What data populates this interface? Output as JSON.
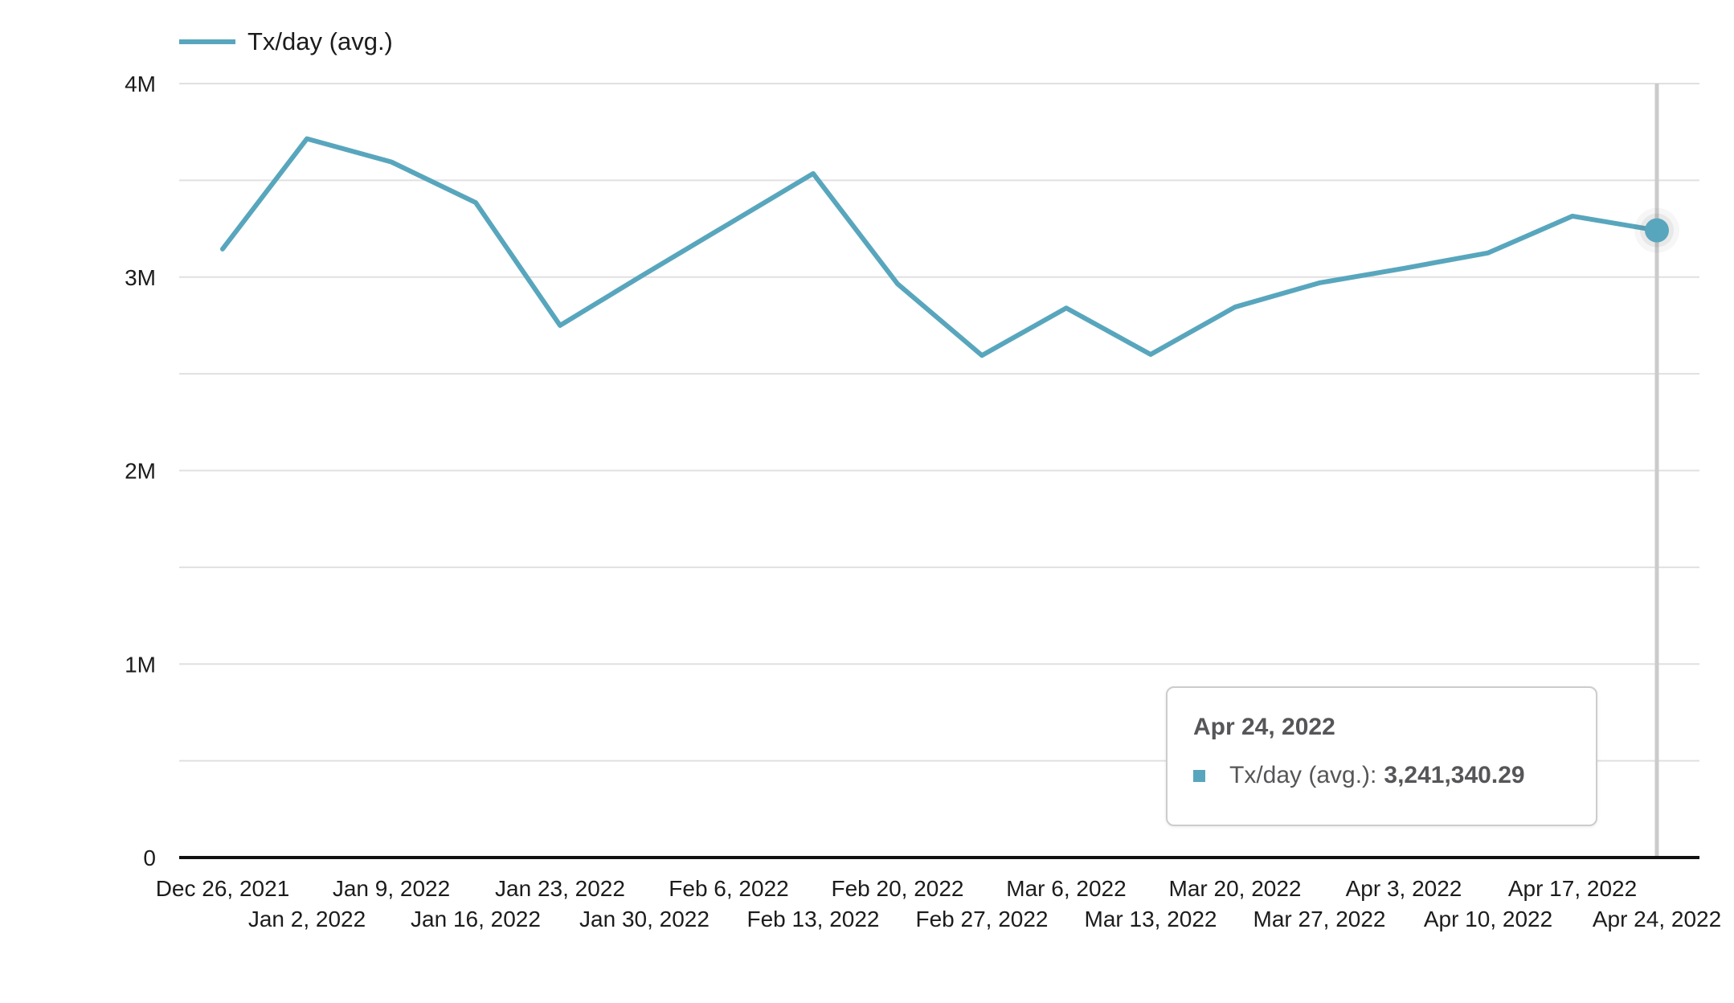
{
  "legend": {
    "label": "Tx/day (avg.)"
  },
  "tooltip": {
    "title": "Apr 24, 2022",
    "series_label": "Tx/day (avg.):",
    "value": "3,241,340.29"
  },
  "colors": {
    "series": "#58a6bd",
    "grid": "#e0e0e0",
    "axis": "#111111",
    "crosshair": "#cbcbcb",
    "axis_text": "#1c1c1c",
    "tooltip_text": "#565659",
    "tooltip_border": "#cccccc"
  },
  "chart_data": {
    "type": "line",
    "title": "",
    "xlabel": "",
    "ylabel": "",
    "legend_position": "top-left",
    "grid": "horizontal",
    "ylim": [
      0,
      4000000
    ],
    "gridline_interval": 500000,
    "y_ticks": [
      {
        "label": "0",
        "value": 0
      },
      {
        "label": "1M",
        "value": 1000000
      },
      {
        "label": "2M",
        "value": 2000000
      },
      {
        "label": "3M",
        "value": 3000000
      },
      {
        "label": "4M",
        "value": 4000000
      }
    ],
    "categories": [
      "Dec 26, 2021",
      "Jan 2, 2022",
      "Jan 9, 2022",
      "Jan 16, 2022",
      "Jan 23, 2022",
      "Jan 30, 2022",
      "Feb 6, 2022",
      "Feb 13, 2022",
      "Feb 20, 2022",
      "Feb 27, 2022",
      "Mar 6, 2022",
      "Mar 13, 2022",
      "Mar 20, 2022",
      "Mar 27, 2022",
      "Apr 3, 2022",
      "Apr 10, 2022",
      "Apr 17, 2022",
      "Apr 24, 2022"
    ],
    "series": [
      {
        "name": "Tx/day (avg.)",
        "values": [
          3145000,
          3715000,
          3595000,
          3385000,
          2750000,
          3015000,
          3275000,
          3535000,
          2965000,
          2595000,
          2840000,
          2600000,
          2845000,
          2970000,
          3045000,
          3125000,
          3315000,
          3241340.29
        ]
      }
    ],
    "highlighted_point": {
      "index": 17,
      "category": "Apr 24, 2022",
      "series": "Tx/day (avg.)",
      "value": 3241340.29
    }
  }
}
